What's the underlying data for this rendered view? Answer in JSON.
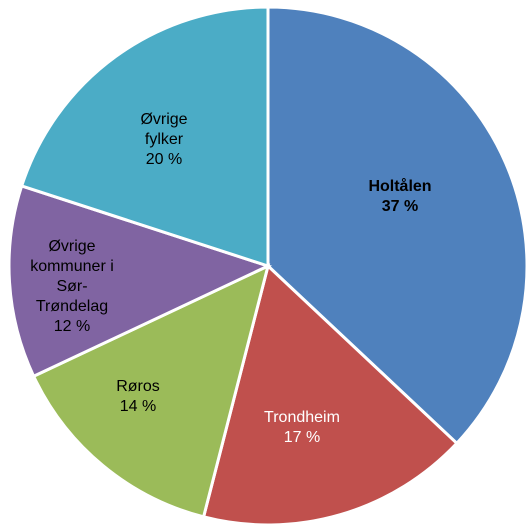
{
  "chart_data": {
    "type": "pie",
    "categories": [
      "Holtålen",
      "Trondheim",
      "Røros",
      "Øvrige kommuner i Sør-Trøndelag",
      "Øvrige fylker"
    ],
    "values": [
      37,
      17,
      14,
      12,
      20
    ],
    "value_labels": [
      "37 %",
      "17 %",
      "14 %",
      "12 %",
      "20 %"
    ],
    "colors": [
      "#4f81bd",
      "#c0504d",
      "#9bbb59",
      "#8064a2",
      "#4bacc6"
    ]
  }
}
